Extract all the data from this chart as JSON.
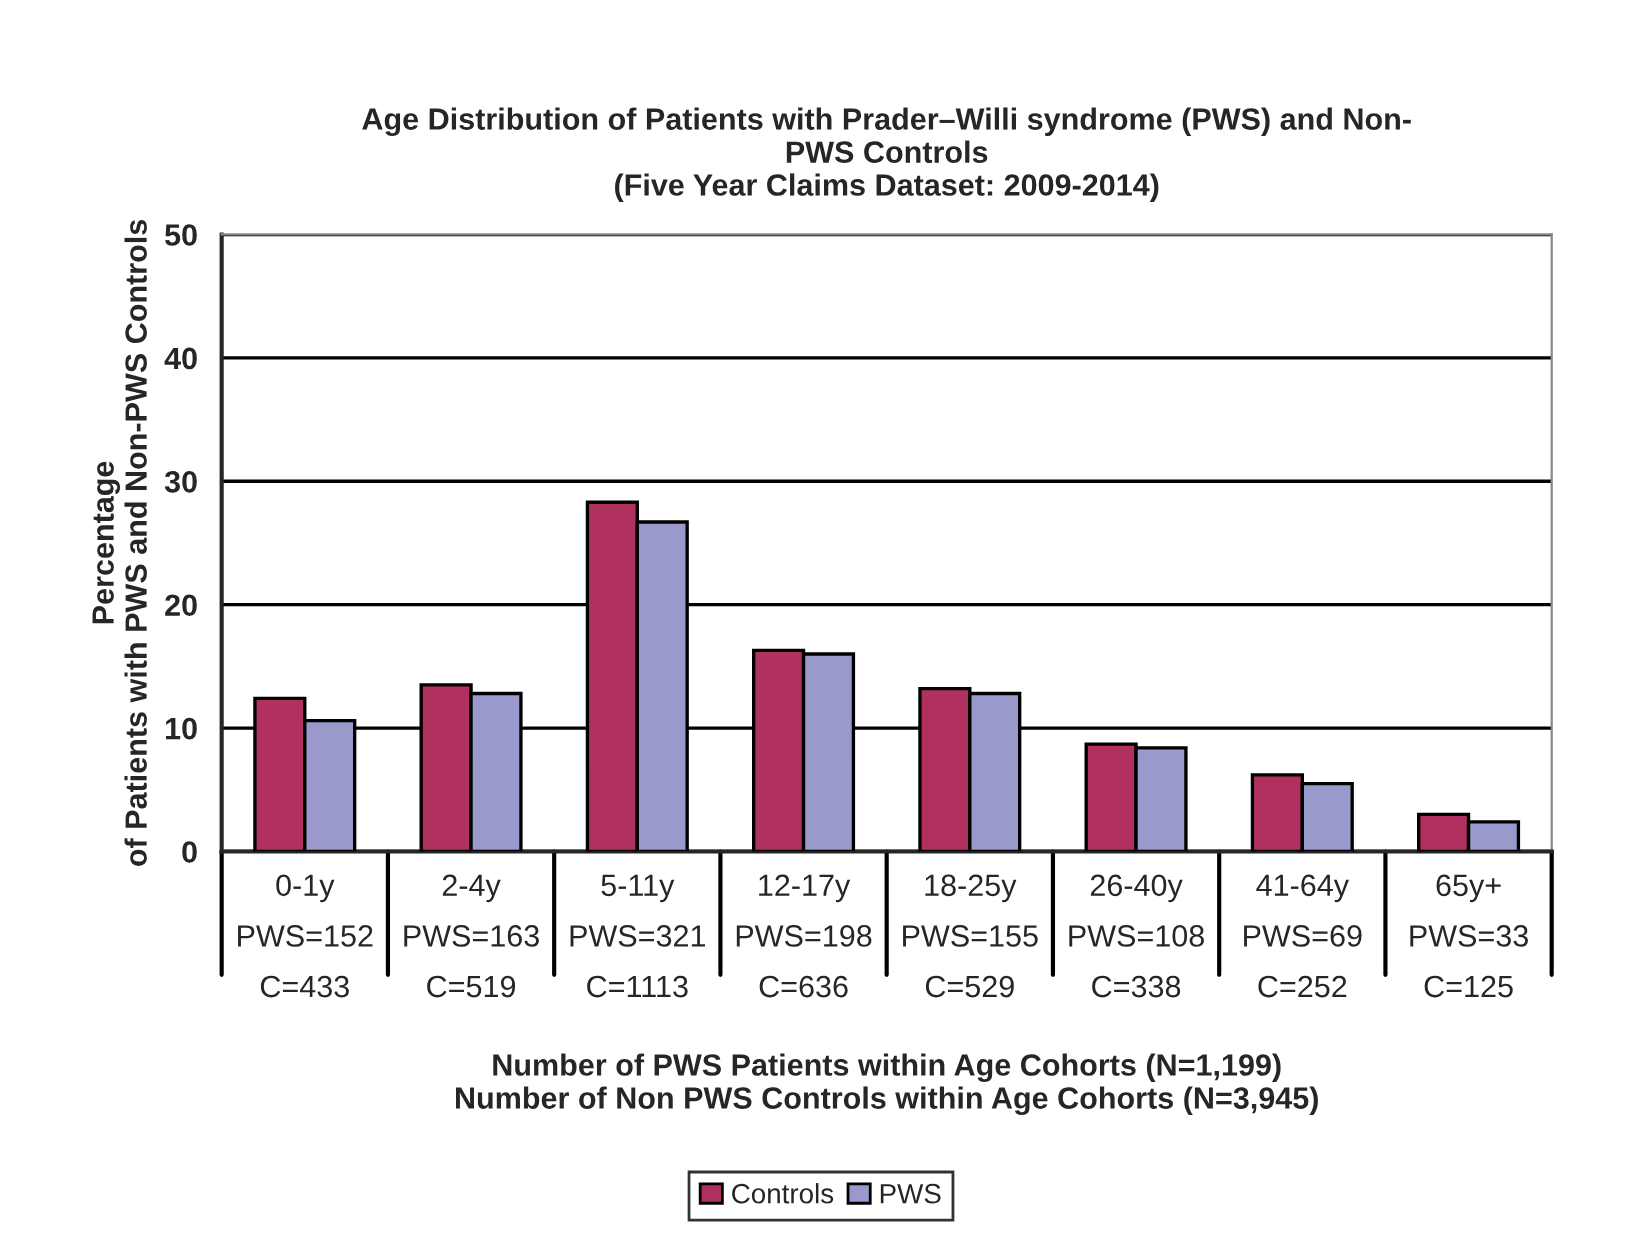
{
  "chart_data": {
    "type": "bar",
    "title": "Age Distribution of Patients with Prader–Willi syndrome (PWS) and Non-\nPWS Controls\n(Five Year Claims Dataset: 2009-2014)",
    "ylabel": "Percentage\nof Patients with PWS and Non-PWS Controls",
    "xlabel": "Number of PWS Patients within Age Cohorts (N=1,199)\nNumber of Non PWS Controls within Age Cohorts (N=3,945)",
    "categories": [
      "0-1y\nPWS=152\nC=433",
      "2-4y\nPWS=163\nC=519",
      "5-11y\nPWS=321\nC=1113",
      "12-17y\nPWS=198\nC=636",
      "18-25y\nPWS=155\nC=529",
      "26-40y\nPWS=108\nC=338",
      "41-64y\nPWS=69\nC=252",
      "65y+\nPWS=33\nC=125"
    ],
    "series": [
      {
        "name": "Controls",
        "color": "#b03060",
        "values": [
          12.4,
          13.5,
          28.3,
          16.3,
          13.2,
          8.7,
          6.2,
          3.0
        ]
      },
      {
        "name": "PWS",
        "color": "#9999cc",
        "values": [
          10.6,
          12.8,
          26.7,
          16.0,
          12.8,
          8.4,
          5.5,
          2.4
        ]
      }
    ],
    "ylim": [
      0,
      50
    ],
    "yticks": [
      0,
      10,
      20,
      30,
      40,
      50
    ],
    "grid": "y",
    "legend": "bottom"
  }
}
